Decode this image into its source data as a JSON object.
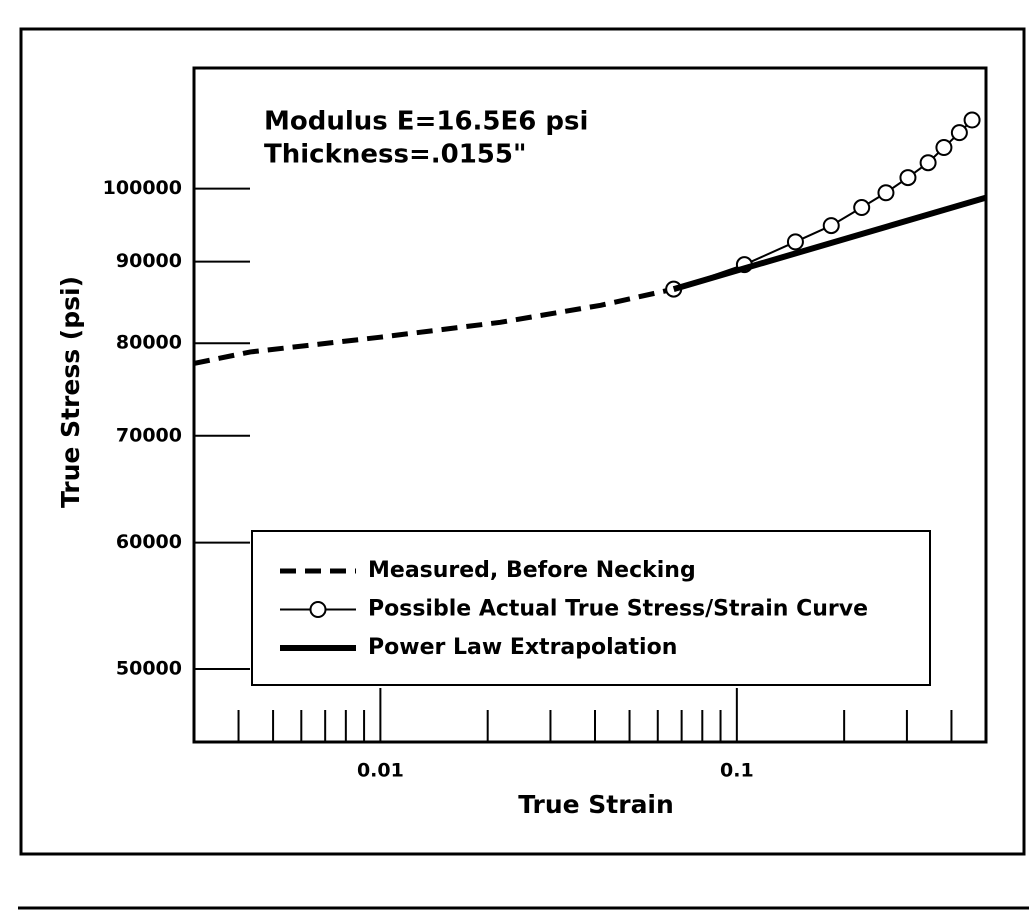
{
  "chart_data": {
    "type": "line",
    "x_label": "True Strain",
    "y_label": "True Stress (psi)",
    "annotations": [
      "Modulus E=16.5E6 psi",
      "Thickness=.0155\""
    ],
    "x_log": true,
    "y_log": true,
    "xlim": [
      0.003,
      0.5
    ],
    "ylim": [
      45000,
      119000
    ],
    "xticks": [
      0.01,
      0.1
    ],
    "xminor_ticks": [
      0.004,
      0.005,
      0.006,
      0.007,
      0.008,
      0.009,
      0.02,
      0.03,
      0.04,
      0.05,
      0.06,
      0.07,
      0.08,
      0.09,
      0.2,
      0.3,
      0.4
    ],
    "yticks": [
      50000,
      60000,
      70000,
      80000,
      90000,
      100000
    ],
    "legend_position": "lower right",
    "series": [
      {
        "name": "Measured, Before Necking",
        "color": "#000000",
        "style": "dashed",
        "x": [
          0.003,
          0.00432,
          0.01,
          0.0217,
          0.0415,
          0.0665
        ],
        "values": [
          77700,
          79000,
          80700,
          82450,
          84500,
          86500
        ]
      },
      {
        "name": "Possible Actual True Stress/Strain Curve",
        "color": "#000000",
        "style": "markers",
        "x": [
          0.0665,
          0.105,
          0.146,
          0.184,
          0.224,
          0.262,
          0.302,
          0.344,
          0.381,
          0.421,
          0.457
        ],
        "values": [
          86500,
          89600,
          92600,
          94800,
          97300,
          99400,
          101600,
          103800,
          106100,
          108400,
          110400
        ]
      },
      {
        "name": "Power Law Extrapolation",
        "color": "#000000",
        "style": "thick",
        "x": [
          0.0665,
          0.5
        ],
        "values": [
          86500,
          98700
        ]
      }
    ]
  }
}
